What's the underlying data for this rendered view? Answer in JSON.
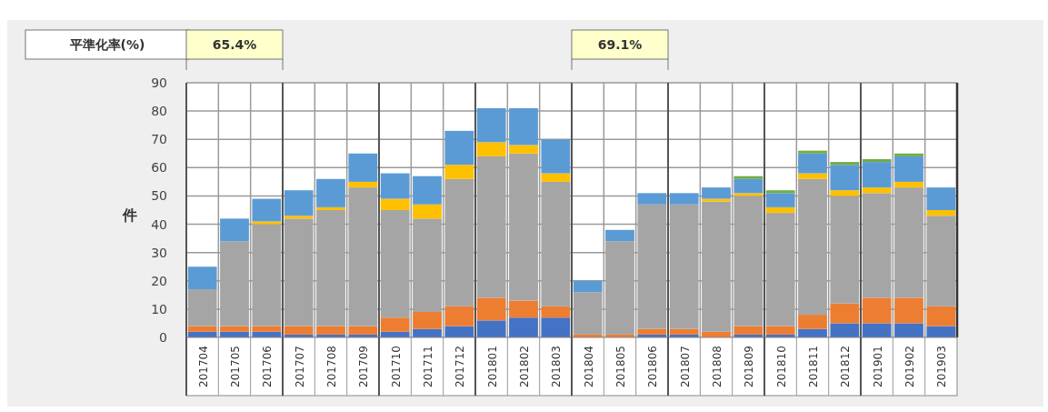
{
  "chart_data": {
    "type": "bar",
    "stacked": true,
    "ylabel": "件",
    "grid": true,
    "legend": false,
    "categories": [
      "201704",
      "201705",
      "201706",
      "201707",
      "201708",
      "201709",
      "201710",
      "201711",
      "201712",
      "201801",
      "201802",
      "201803",
      "201804",
      "201805",
      "201806",
      "201807",
      "201808",
      "201809",
      "201810",
      "201811",
      "201812",
      "201901",
      "201902",
      "201903"
    ],
    "ylim": [
      0,
      90
    ],
    "yticks": [
      0,
      10,
      20,
      30,
      40,
      50,
      60,
      70,
      80,
      90
    ],
    "annotations": [
      "平準化率(%)",
      "65.4%",
      "69.1%"
    ],
    "series": [
      {
        "color": "#4472c4",
        "values": [
          2,
          2,
          2,
          1,
          1,
          1,
          2,
          3,
          4,
          6,
          7,
          7,
          0,
          0,
          1,
          1,
          0,
          1,
          1,
          3,
          5,
          5,
          5,
          4
        ]
      },
      {
        "color": "#ed7d31",
        "values": [
          2,
          2,
          2,
          3,
          3,
          3,
          5,
          6,
          7,
          8,
          6,
          4,
          1,
          1,
          2,
          2,
          2,
          3,
          3,
          5,
          7,
          9,
          9,
          7
        ]
      },
      {
        "color": "#a5a5a5",
        "values": [
          13,
          30,
          36,
          38,
          41,
          49,
          38,
          33,
          45,
          50,
          52,
          44,
          15,
          33,
          44,
          44,
          46,
          46,
          40,
          48,
          38,
          37,
          39,
          32
        ]
      },
      {
        "color": "#ffc000",
        "values": [
          0,
          0,
          1,
          1,
          1,
          2,
          4,
          5,
          5,
          5,
          3,
          3,
          0,
          0,
          0,
          0,
          1,
          1,
          2,
          2,
          2,
          2,
          2,
          2
        ]
      },
      {
        "color": "#5b9bd5",
        "values": [
          8,
          8,
          8,
          9,
          10,
          10,
          9,
          10,
          12,
          12,
          13,
          12,
          4,
          4,
          4,
          4,
          4,
          5,
          5,
          7,
          9,
          9,
          9,
          8
        ]
      },
      {
        "color": "#70ad47",
        "values": [
          0,
          0,
          0,
          0,
          0,
          0,
          0,
          0,
          0,
          0,
          0,
          0,
          0,
          0,
          0,
          0,
          0,
          1,
          1,
          1,
          1,
          1,
          1,
          0
        ]
      }
    ]
  }
}
